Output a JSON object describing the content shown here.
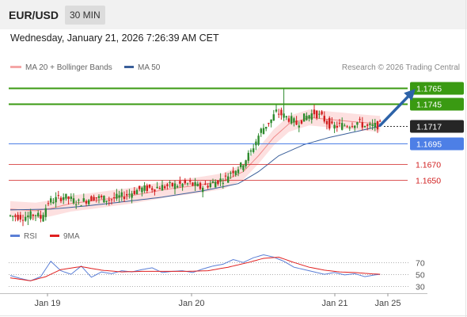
{
  "header": {
    "symbol": "EUR/USD",
    "timeframe": "30 MIN",
    "datetime": "Wednesday, January 21, 2026 7:26:39 AM CET",
    "credit": "Research © 2026 Trading Central"
  },
  "legend": {
    "price": [
      {
        "name": "MA 20 + Bollinger Bands",
        "color": "#f4a6a6"
      },
      {
        "name": "MA 50",
        "color": "#3a5f9a"
      }
    ],
    "rsi": [
      {
        "name": "RSI",
        "color": "#5b7fd6"
      },
      {
        "name": "9MA",
        "color": "#e02020"
      }
    ]
  },
  "colors": {
    "up_candle": "#2e8b2e",
    "down_candle": "#d11f1f",
    "resistance": "#3a9a12",
    "pivot": "#4d7fe6",
    "support": "#d11f1f",
    "current": "#262626",
    "arrow": "#2d63a8"
  },
  "chart_data": [
    {
      "type": "candlestick",
      "instrument": "EUR/USD",
      "interval": "30 MIN",
      "ylim": [
        1.1592,
        1.1776
      ],
      "levels": [
        {
          "value": "1.1765",
          "role": "resistance"
        },
        {
          "value": "1.1745",
          "role": "resistance"
        },
        {
          "value": "1.1717",
          "role": "current"
        },
        {
          "value": "1.1695",
          "role": "pivot"
        },
        {
          "value": "1.1670",
          "role": "support"
        },
        {
          "value": "1.1650",
          "role": "support"
        }
      ],
      "x_ticks": [
        "Jan 19",
        "Jan 20",
        "Jan 21",
        "Jan 25"
      ],
      "price_path": [
        [
          0,
          1.1605
        ],
        [
          6,
          1.1603
        ],
        [
          11,
          1.1607
        ],
        [
          13,
          1.1602
        ],
        [
          15,
          1.1615
        ],
        [
          16,
          1.1622
        ],
        [
          22,
          1.1629
        ],
        [
          28,
          1.1621
        ],
        [
          34,
          1.1628
        ],
        [
          40,
          1.1625
        ],
        [
          46,
          1.163
        ],
        [
          52,
          1.1638
        ],
        [
          58,
          1.164
        ],
        [
          66,
          1.1643
        ],
        [
          72,
          1.1645
        ],
        [
          76,
          1.164
        ],
        [
          80,
          1.1645
        ],
        [
          86,
          1.1652
        ],
        [
          88,
          1.166
        ],
        [
          92,
          1.1667
        ],
        [
          96,
          1.1685
        ],
        [
          100,
          1.1712
        ],
        [
          104,
          1.1725
        ],
        [
          106,
          1.1735
        ],
        [
          109,
          1.173
        ],
        [
          112,
          1.1725
        ],
        [
          114,
          1.172
        ],
        [
          117,
          1.1728
        ],
        [
          121,
          1.1734
        ],
        [
          124,
          1.1728
        ],
        [
          126,
          1.1722
        ],
        [
          128,
          1.1716
        ],
        [
          131,
          1.1718
        ],
        [
          135,
          1.1719
        ],
        [
          138,
          1.1722
        ],
        [
          142,
          1.1716
        ],
        [
          146,
          1.1718
        ]
      ],
      "spikes": [
        {
          "x": 108,
          "high": 1.1764
        },
        {
          "x": 7,
          "low": 1.1593
        }
      ],
      "ma20_path": [
        [
          0,
          1.1613
        ],
        [
          10,
          1.1611
        ],
        [
          16,
          1.1614
        ],
        [
          24,
          1.162
        ],
        [
          34,
          1.1624
        ],
        [
          48,
          1.163
        ],
        [
          62,
          1.1638
        ],
        [
          74,
          1.1643
        ],
        [
          84,
          1.1648
        ],
        [
          92,
          1.166
        ],
        [
          98,
          1.168
        ],
        [
          104,
          1.1703
        ],
        [
          110,
          1.172
        ],
        [
          118,
          1.1728
        ],
        [
          128,
          1.1725
        ],
        [
          138,
          1.1722
        ],
        [
          146,
          1.172
        ]
      ],
      "bollinger_width": 0.001,
      "ma50_path": [
        [
          0,
          1.1612
        ],
        [
          16,
          1.1613
        ],
        [
          30,
          1.1617
        ],
        [
          44,
          1.1622
        ],
        [
          60,
          1.1628
        ],
        [
          76,
          1.1636
        ],
        [
          90,
          1.1645
        ],
        [
          98,
          1.166
        ],
        [
          106,
          1.168
        ],
        [
          116,
          1.1694
        ],
        [
          126,
          1.1703
        ],
        [
          136,
          1.171
        ],
        [
          146,
          1.1717
        ]
      ],
      "forecast_arrow": {
        "from": [
          146,
          1.1718
        ],
        "to": [
          160,
          1.1764
        ]
      }
    },
    {
      "type": "line",
      "title": "RSI",
      "ylim": [
        22,
        85
      ],
      "y_ticks": [
        70,
        50,
        30
      ],
      "x_ticks": [
        "Jan 19",
        "Jan 20",
        "Jan 21",
        "Jan 25"
      ],
      "series": [
        {
          "name": "RSI",
          "path": [
            [
              0,
              48
            ],
            [
              4,
              43
            ],
            [
              8,
              39
            ],
            [
              12,
              46
            ],
            [
              16,
              72
            ],
            [
              20,
              56
            ],
            [
              24,
              50
            ],
            [
              28,
              64
            ],
            [
              32,
              45
            ],
            [
              36,
              54
            ],
            [
              40,
              51
            ],
            [
              44,
              56
            ],
            [
              48,
              54
            ],
            [
              52,
              58
            ],
            [
              56,
              61
            ],
            [
              60,
              53
            ],
            [
              64,
              55
            ],
            [
              68,
              56
            ],
            [
              72,
              53
            ],
            [
              76,
              59
            ],
            [
              80,
              64
            ],
            [
              84,
              67
            ],
            [
              88,
              75
            ],
            [
              92,
              70
            ],
            [
              96,
              78
            ],
            [
              100,
              83
            ],
            [
              104,
              79
            ],
            [
              108,
              72
            ],
            [
              112,
              62
            ],
            [
              116,
              58
            ],
            [
              120,
              54
            ],
            [
              124,
              50
            ],
            [
              128,
              53
            ],
            [
              132,
              49
            ],
            [
              136,
              51
            ],
            [
              140,
              46
            ],
            [
              144,
              49
            ],
            [
              146,
              50
            ]
          ]
        },
        {
          "name": "9MA",
          "path": [
            [
              0,
              44
            ],
            [
              8,
              39
            ],
            [
              14,
              46
            ],
            [
              20,
              58
            ],
            [
              28,
              63
            ],
            [
              36,
              57
            ],
            [
              44,
              54
            ],
            [
              52,
              55
            ],
            [
              60,
              55
            ],
            [
              70,
              55
            ],
            [
              78,
              56
            ],
            [
              86,
              62
            ],
            [
              94,
              70
            ],
            [
              100,
              77
            ],
            [
              106,
              79
            ],
            [
              112,
              70
            ],
            [
              118,
              62
            ],
            [
              124,
              57
            ],
            [
              130,
              54
            ],
            [
              136,
              53
            ],
            [
              142,
              51
            ],
            [
              146,
              50
            ]
          ]
        }
      ]
    }
  ]
}
